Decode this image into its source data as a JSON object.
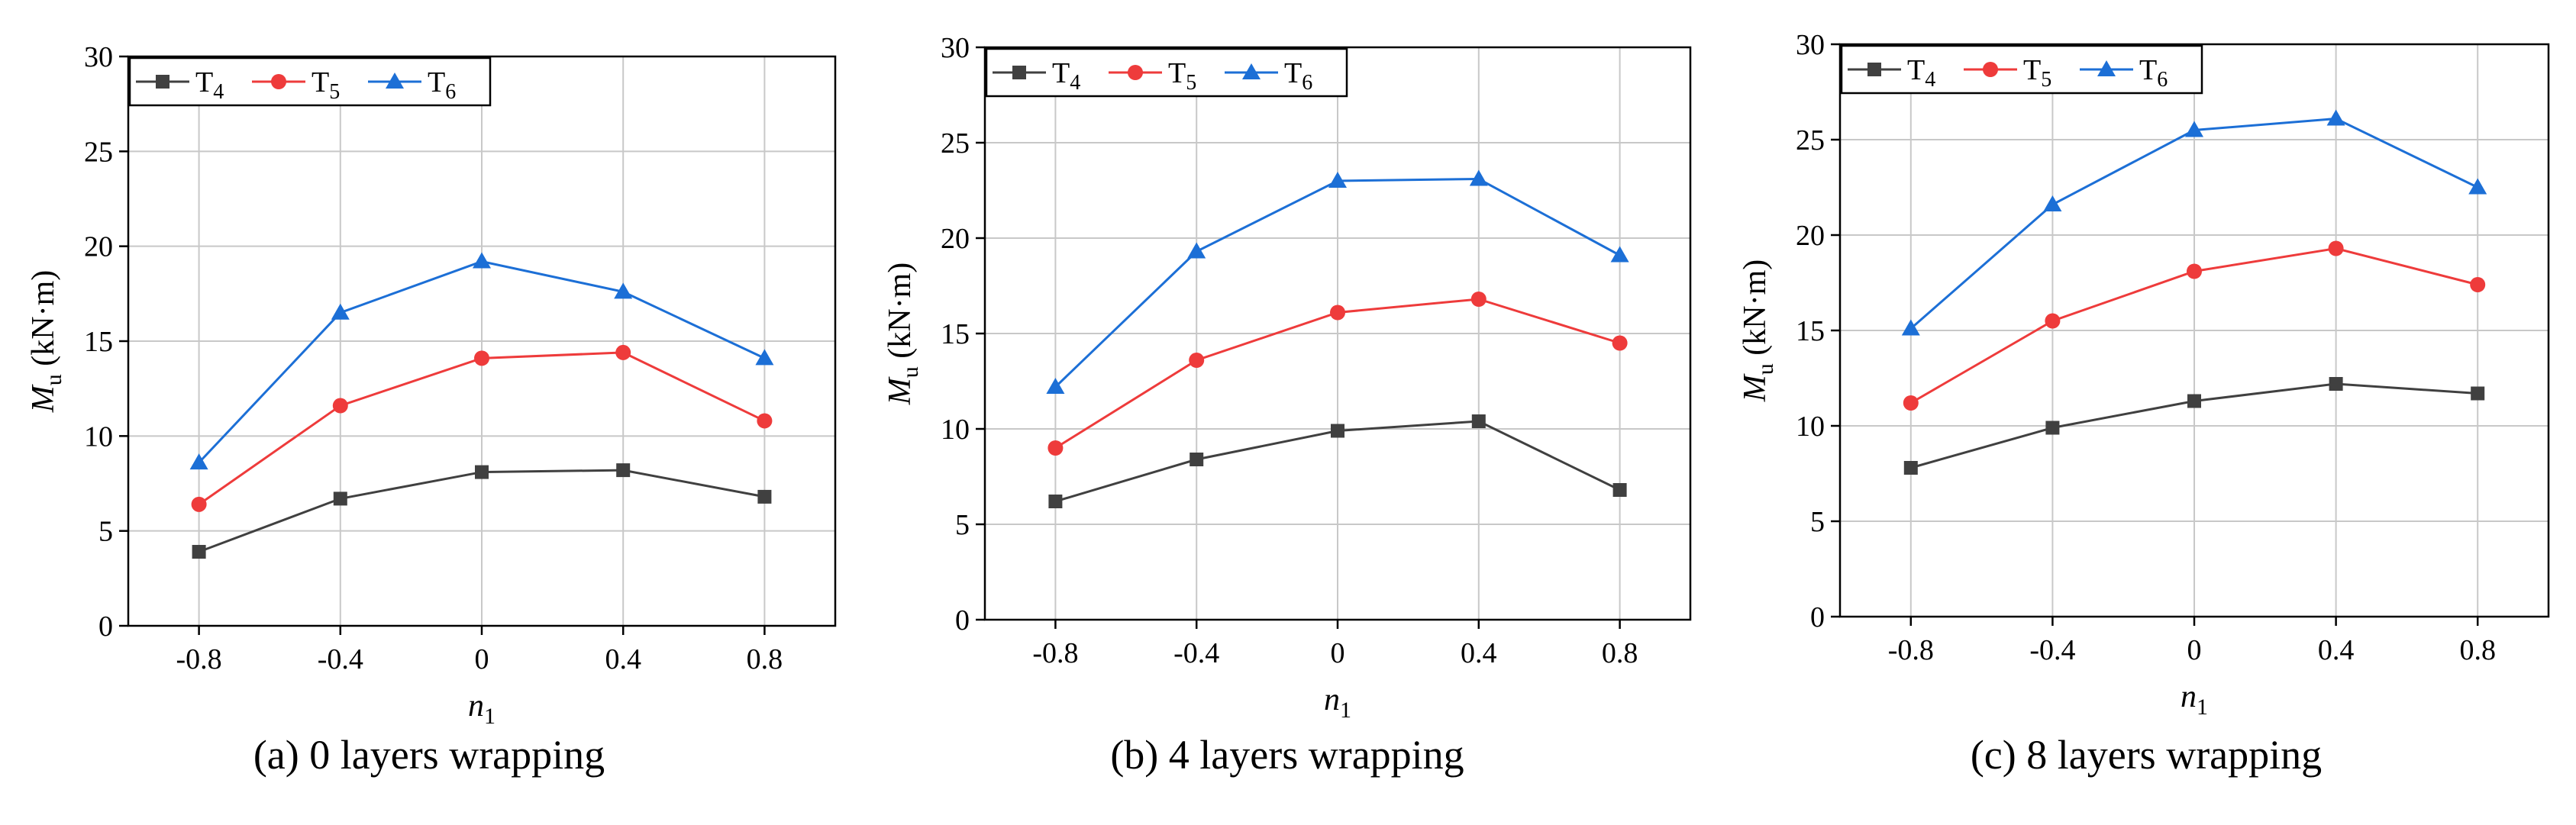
{
  "chart_data": [
    {
      "type": "line",
      "caption": "(a) 0 layers wrapping",
      "xlabel_main": "n",
      "xlabel_sub": "1",
      "ylabel_main": "M",
      "ylabel_sub": "u",
      "ylabel_unit": " (kN·m)",
      "categories": [
        "-0.8",
        "-0.4",
        "0",
        "0.4",
        "0.8"
      ],
      "x": [
        -0.8,
        -0.4,
        0,
        0.4,
        0.8
      ],
      "xlim": [
        -1.0,
        1.0
      ],
      "ylim": [
        0,
        30
      ],
      "yticks": [
        0,
        5,
        10,
        15,
        20,
        25,
        30
      ],
      "grid": true,
      "legend_position": "top-left",
      "series": [
        {
          "name": "T",
          "sub": "4",
          "color": "#404040",
          "marker": "square",
          "values": [
            3.9,
            6.7,
            8.1,
            8.2,
            6.8
          ]
        },
        {
          "name": "T",
          "sub": "5",
          "color": "#ee3b3b",
          "marker": "circle",
          "values": [
            6.4,
            11.6,
            14.1,
            14.4,
            10.8
          ]
        },
        {
          "name": "T",
          "sub": "6",
          "color": "#1c6fd6",
          "marker": "triangle",
          "values": [
            8.6,
            16.5,
            19.2,
            17.6,
            14.1
          ]
        }
      ]
    },
    {
      "type": "line",
      "caption": "(b) 4 layers wrapping",
      "xlabel_main": "n",
      "xlabel_sub": "1",
      "ylabel_main": "M",
      "ylabel_sub": "u",
      "ylabel_unit": " (kN·m)",
      "categories": [
        "-0.8",
        "-0.4",
        "0",
        "0.4",
        "0.8"
      ],
      "x": [
        -0.8,
        -0.4,
        0,
        0.4,
        0.8
      ],
      "xlim": [
        -1.0,
        1.0
      ],
      "ylim": [
        0,
        30
      ],
      "yticks": [
        0,
        5,
        10,
        15,
        20,
        25,
        30
      ],
      "grid": true,
      "legend_position": "top-left",
      "series": [
        {
          "name": "T",
          "sub": "4",
          "color": "#404040",
          "marker": "square",
          "values": [
            6.2,
            8.4,
            9.9,
            10.4,
            6.8
          ]
        },
        {
          "name": "T",
          "sub": "5",
          "color": "#ee3b3b",
          "marker": "circle",
          "values": [
            9.0,
            13.6,
            16.1,
            16.8,
            14.5
          ]
        },
        {
          "name": "T",
          "sub": "6",
          "color": "#1c6fd6",
          "marker": "triangle",
          "values": [
            12.2,
            19.3,
            23.0,
            23.1,
            19.1
          ]
        }
      ]
    },
    {
      "type": "line",
      "caption": "(c) 8 layers wrapping",
      "xlabel_main": "n",
      "xlabel_sub": "1",
      "ylabel_main": "M",
      "ylabel_sub": "u",
      "ylabel_unit": " (kN·m)",
      "categories": [
        "-0.8",
        "-0.4",
        "0",
        "0.4",
        "0.8"
      ],
      "x": [
        -0.8,
        -0.4,
        0,
        0.4,
        0.8
      ],
      "xlim": [
        -1.0,
        1.0
      ],
      "ylim": [
        0,
        30
      ],
      "yticks": [
        0,
        5,
        10,
        15,
        20,
        25,
        30
      ],
      "grid": true,
      "legend_position": "top-left",
      "series": [
        {
          "name": "T",
          "sub": "4",
          "color": "#404040",
          "marker": "square",
          "values": [
            7.8,
            9.9,
            11.3,
            12.2,
            11.7
          ]
        },
        {
          "name": "T",
          "sub": "5",
          "color": "#ee3b3b",
          "marker": "circle",
          "values": [
            11.2,
            15.5,
            18.1,
            19.3,
            17.4
          ]
        },
        {
          "name": "T",
          "sub": "6",
          "color": "#1c6fd6",
          "marker": "triangle",
          "values": [
            15.1,
            21.6,
            25.5,
            26.1,
            22.5
          ]
        }
      ]
    }
  ]
}
